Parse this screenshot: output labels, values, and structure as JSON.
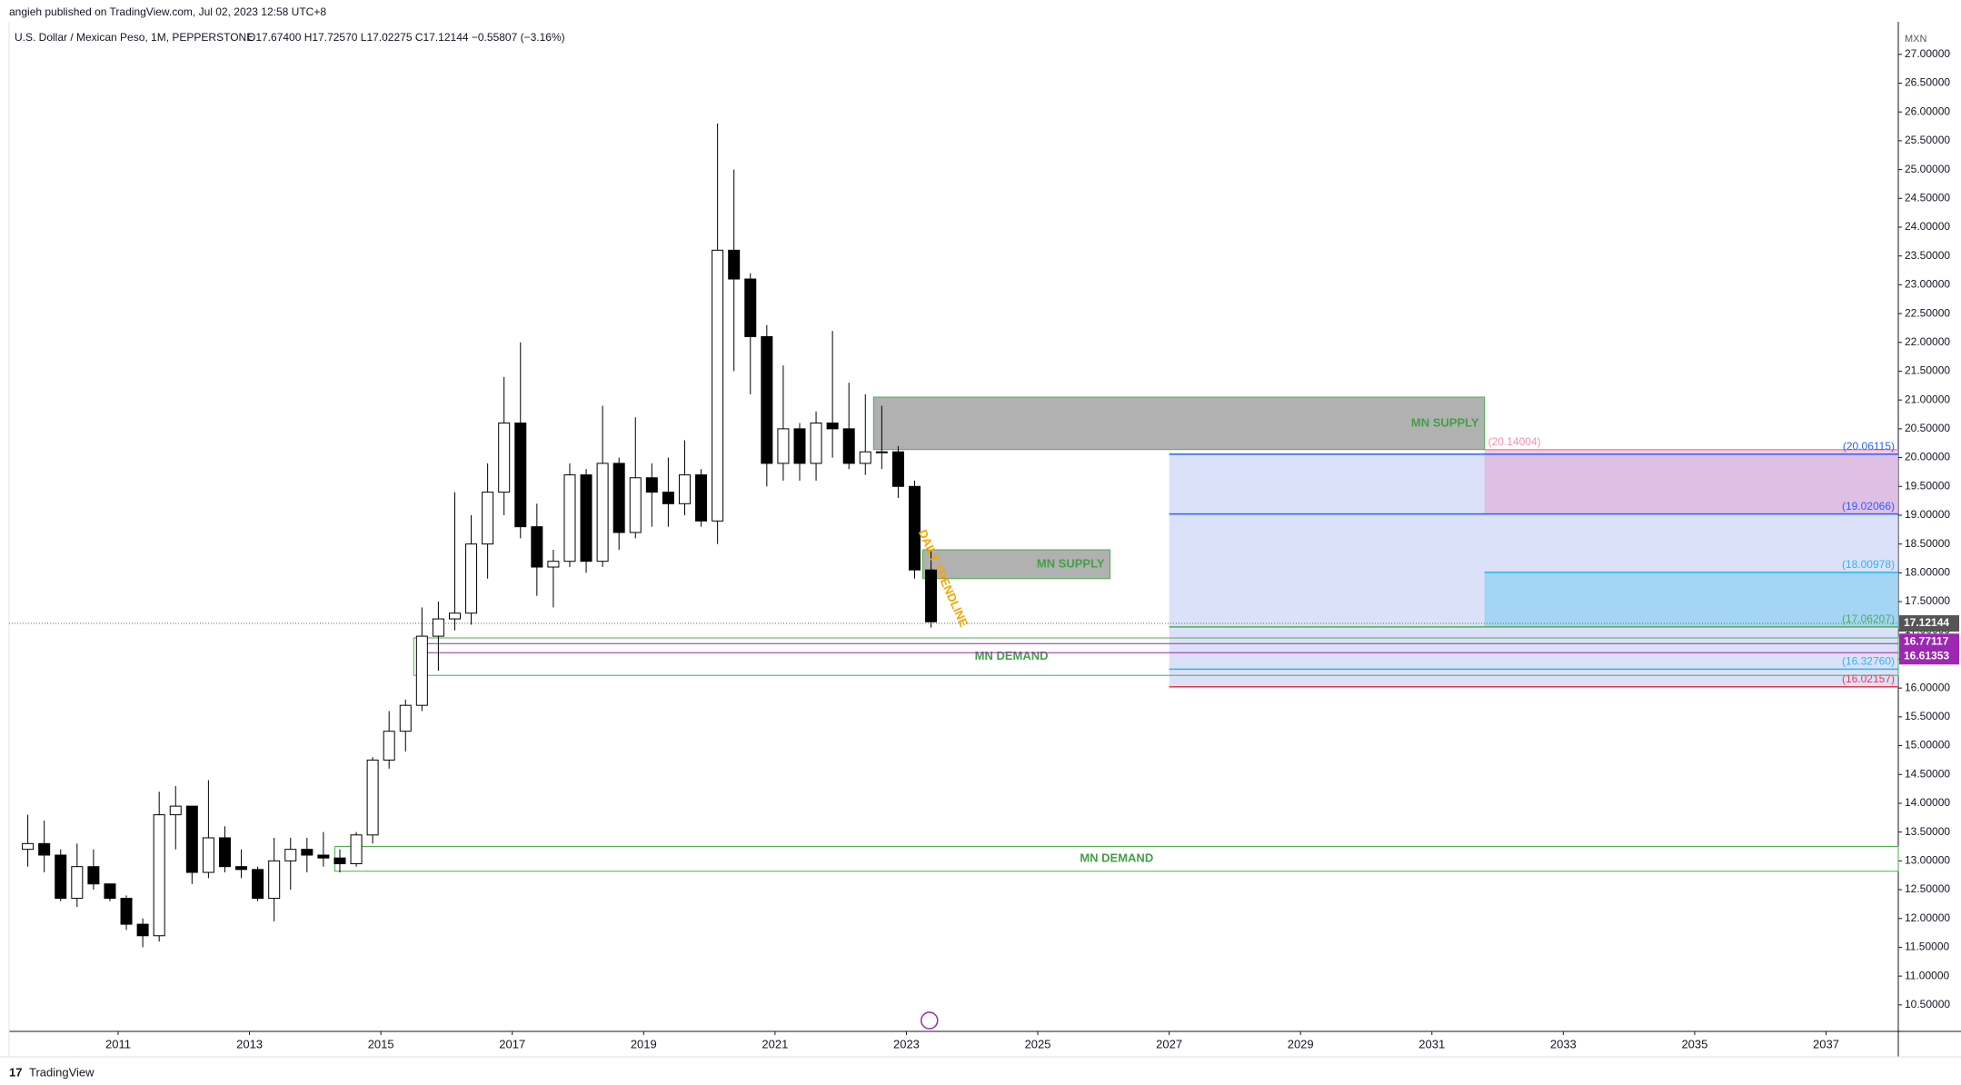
{
  "header": {
    "publisher": "angieh published on TradingView.com, Jul 02, 2023 12:58 UTC+8",
    "symbol": "U.S. Dollar / Mexican Peso, 1M, PEPPERSTONE",
    "ohlc": "O17.67400  H17.72570  L17.02275  C17.12144  −0.55807 (−3.16%)",
    "currency": "MXN"
  },
  "footer": {
    "brand": "TradingView"
  },
  "chart_data": {
    "type": "candlestick",
    "x": [
      2009.5,
      2009.75,
      2010,
      2010.25,
      2010.5,
      2010.75,
      2011,
      2011.25,
      2011.5,
      2011.75,
      2012,
      2012.25,
      2012.5,
      2012.75,
      2013,
      2013.25,
      2013.5,
      2013.75,
      2014,
      2014.25,
      2014.5,
      2014.75,
      2015,
      2015.25,
      2015.5,
      2015.75,
      2016,
      2016.25,
      2016.5,
      2016.75,
      2017,
      2017.25,
      2017.5,
      2017.75,
      2018,
      2018.25,
      2018.5,
      2018.75,
      2019,
      2019.25,
      2019.5,
      2019.75,
      2020,
      2020.25,
      2020.5,
      2020.75,
      2021,
      2021.25,
      2021.5,
      2021.75,
      2022,
      2022.25,
      2022.5,
      2022.75,
      2023,
      2023.25
    ],
    "open": [
      13.2,
      13.3,
      13.1,
      12.35,
      12.9,
      12.6,
      12.35,
      11.9,
      11.7,
      13.8,
      13.95,
      12.8,
      13.4,
      12.9,
      12.85,
      12.35,
      13.0,
      13.2,
      13.1,
      13.05,
      12.95,
      13.45,
      14.75,
      15.25,
      15.7,
      16.9,
      17.2,
      17.3,
      18.5,
      19.4,
      20.6,
      18.8,
      18.1,
      18.2,
      19.7,
      18.2,
      19.9,
      18.7,
      19.65,
      19.4,
      19.2,
      19.7,
      18.9,
      23.6,
      23.1,
      22.1,
      19.9,
      20.5,
      19.9,
      20.6,
      20.5,
      19.9,
      20.1,
      20.1,
      19.5,
      18.05
    ],
    "high": [
      13.8,
      13.7,
      13.2,
      13.3,
      13.2,
      12.6,
      12.4,
      12.0,
      14.2,
      14.3,
      13.95,
      14.4,
      13.6,
      13.2,
      12.9,
      13.4,
      13.4,
      13.4,
      13.5,
      13.2,
      13.5,
      14.8,
      15.6,
      15.8,
      17.4,
      17.5,
      19.4,
      19.0,
      19.9,
      21.4,
      22.0,
      19.2,
      18.4,
      19.9,
      19.8,
      20.9,
      20.0,
      20.7,
      19.9,
      20.0,
      20.3,
      19.8,
      25.8,
      25.0,
      23.2,
      22.3,
      21.6,
      20.6,
      20.8,
      22.2,
      21.3,
      21.1,
      20.9,
      20.2,
      19.6,
      18.4
    ],
    "low": [
      12.9,
      12.8,
      12.3,
      12.2,
      12.5,
      12.3,
      11.8,
      11.5,
      11.6,
      13.2,
      12.6,
      12.7,
      12.8,
      12.7,
      12.3,
      11.95,
      12.5,
      12.8,
      12.9,
      12.8,
      12.9,
      13.3,
      14.6,
      14.9,
      15.6,
      16.3,
      17.0,
      17.1,
      17.9,
      19.0,
      18.6,
      17.6,
      17.4,
      18.1,
      18.0,
      18.1,
      18.4,
      18.6,
      18.8,
      18.8,
      19.0,
      18.8,
      18.5,
      21.5,
      21.1,
      19.5,
      19.6,
      19.6,
      19.6,
      20.0,
      19.8,
      19.7,
      19.8,
      19.3,
      17.9,
      17.05
    ],
    "close": [
      13.3,
      13.1,
      12.35,
      12.9,
      12.6,
      12.35,
      11.9,
      11.7,
      13.8,
      13.95,
      12.8,
      13.4,
      12.9,
      12.85,
      12.35,
      13.0,
      13.2,
      13.1,
      13.05,
      12.95,
      13.45,
      14.75,
      15.25,
      15.7,
      16.9,
      17.2,
      17.3,
      18.5,
      19.4,
      20.6,
      18.8,
      18.1,
      18.2,
      19.7,
      18.2,
      19.9,
      18.7,
      19.65,
      19.4,
      19.2,
      19.7,
      18.9,
      23.6,
      23.1,
      22.1,
      19.9,
      20.5,
      19.9,
      20.6,
      20.5,
      19.9,
      20.1,
      20.1,
      19.5,
      18.05,
      17.15
    ],
    "xlim": [
      2009.34,
      2038.1
    ],
    "ylim": [
      10.04,
      27.47
    ],
    "xticks": [
      2011,
      2013,
      2015,
      2017,
      2019,
      2021,
      2023,
      2025,
      2027,
      2029,
      2031,
      2033,
      2035,
      2037
    ],
    "yticks": [
      {
        "value": 10.5,
        "label": "10.50000"
      },
      {
        "value": 11,
        "label": "11.00000"
      },
      {
        "value": 11.5,
        "label": "11.50000"
      },
      {
        "value": 12,
        "label": "12.00000"
      },
      {
        "value": 12.5,
        "label": "12.50000"
      },
      {
        "value": 13,
        "label": "13.00000"
      },
      {
        "value": 13.5,
        "label": "13.50000"
      },
      {
        "value": 14,
        "label": "14.00000"
      },
      {
        "value": 14.5,
        "label": "14.50000"
      },
      {
        "value": 15,
        "label": "15.00000"
      },
      {
        "value": 15.5,
        "label": "15.50000"
      },
      {
        "value": 16,
        "label": "16.00000"
      },
      {
        "value": 16.5,
        "label": "16.50000"
      },
      {
        "value": 17,
        "label": "17.00000"
      },
      {
        "value": 17.5,
        "label": "17.50000"
      },
      {
        "value": 18,
        "label": "18.00000"
      },
      {
        "value": 18.5,
        "label": "18.50000"
      },
      {
        "value": 19,
        "label": "19.00000"
      },
      {
        "value": 19.5,
        "label": "19.50000"
      },
      {
        "value": 20,
        "label": "20.00000"
      },
      {
        "value": 20.5,
        "label": "20.50000"
      },
      {
        "value": 21,
        "label": "21.00000"
      },
      {
        "value": 21.5,
        "label": "21.50000"
      },
      {
        "value": 22,
        "label": "22.00000"
      },
      {
        "value": 22.5,
        "label": "22.50000"
      },
      {
        "value": 23,
        "label": "23.00000"
      },
      {
        "value": 23.5,
        "label": "23.50000"
      },
      {
        "value": 24,
        "label": "24.00000"
      },
      {
        "value": 24.5,
        "label": "24.50000"
      },
      {
        "value": 25,
        "label": "25.00000"
      },
      {
        "value": 25.5,
        "label": "25.50000"
      },
      {
        "value": 26,
        "label": "26.00000"
      },
      {
        "value": 26.5,
        "label": "26.50000"
      },
      {
        "value": 27,
        "label": "27.00000"
      }
    ],
    "zones": [
      {
        "label": "MN SUPPLY",
        "xlim": [
          2022.5,
          2031.8
        ],
        "ylim": [
          20.14,
          21.05
        ],
        "fill": "#9e9e9e",
        "border": "#4caf50"
      },
      {
        "label": "MN SUPPLY",
        "xlim": [
          2023.25,
          2026.1
        ],
        "ylim": [
          17.9,
          18.4
        ],
        "fill": "#9e9e9e",
        "border": "#4caf50"
      },
      {
        "label": "MN DEMAND",
        "xlim": [
          2015.5,
          2038.1
        ],
        "ylim": [
          16.22,
          16.87
        ],
        "fill": "none",
        "border": "#4caf50"
      },
      {
        "label": "MN DEMAND",
        "xlim": [
          2014.3,
          2038.1
        ],
        "ylim": [
          12.82,
          13.25
        ],
        "fill": "none",
        "border": "#4caf50"
      }
    ],
    "boxes": [
      {
        "xlim": [
          2027,
          2038.1
        ],
        "ylim": [
          16.02157,
          20.06115
        ],
        "fill": "#c5cdf7"
      },
      {
        "xlim": [
          2031.8,
          2038.1
        ],
        "ylim": [
          19.02066,
          20.14004
        ],
        "fill": "#e3a9d6"
      },
      {
        "xlim": [
          2031.8,
          2038.1
        ],
        "ylim": [
          17.06207,
          18.00978
        ],
        "fill": "#7fcdf0"
      }
    ],
    "levels": [
      {
        "value": 20.14004,
        "label": "(20.14004)",
        "color": "#f48fb1",
        "from": 2031.8
      },
      {
        "value": 20.06115,
        "label": "(20.06115)",
        "color": "#2962ff",
        "from": 2027
      },
      {
        "value": 19.02066,
        "label": "(19.02066)",
        "color": "#2962ff",
        "from": 2027
      },
      {
        "value": 18.00978,
        "label": "(18.00978)",
        "color": "#29b6f6",
        "from": 2031.8
      },
      {
        "value": 17.06207,
        "label": "(17.06207)",
        "color": "#4caf50",
        "from": 2027
      },
      {
        "value": 16.3276,
        "label": "(16.32760)",
        "color": "#29b6f6",
        "from": 2027
      },
      {
        "value": 16.02157,
        "label": "(16.02157)",
        "color": "#f23645",
        "from": 2027
      }
    ],
    "inner_lines": [
      16.77117,
      16.61353
    ],
    "price_badges": [
      {
        "value": 17.12144,
        "color": "#555555"
      },
      {
        "value": 16.77117,
        "color": "#9c27b0"
      },
      {
        "value": 16.61353,
        "color": "#9c27b0"
      }
    ],
    "annotation": "DAILY TRENDLINE"
  }
}
